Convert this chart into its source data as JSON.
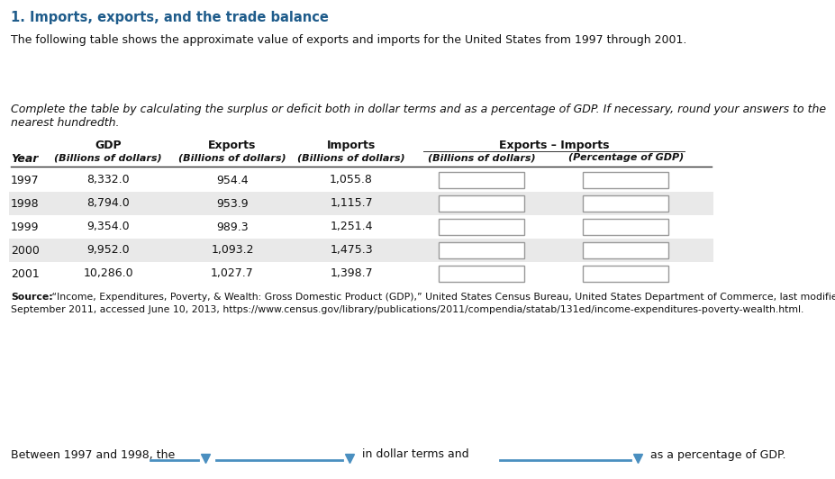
{
  "title": "1. Imports, exports, and the trade balance",
  "title_color": "#1f5c8b",
  "intro_text": "The following table shows the approximate value of exports and imports for the United States from 1997 through 2001.",
  "italic_line1": "Complete the table by calculating the surplus or deficit both in dollar terms and as a percentage of GDP. If necessary, round your answers to the",
  "italic_line2": "nearest hundredth.",
  "years": [
    "1997",
    "1998",
    "1999",
    "2000",
    "2001"
  ],
  "gdp": [
    "8,332.0",
    "8,794.0",
    "9,354.0",
    "9,952.0",
    "10,286.0"
  ],
  "exports": [
    "954.4",
    "953.9",
    "989.3",
    "1,093.2",
    "1,027.7"
  ],
  "imports": [
    "1,055.8",
    "1,115.7",
    "1,251.4",
    "1,475.3",
    "1,398.7"
  ],
  "source_bold": "Source:",
  "source_rest1": " “Income, Expenditures, Poverty, & Wealth: Gross Domestic Product (GDP),” United States Census Bureau, United States Department of Commerce, last modified",
  "source_line2": "September 2011, accessed June 10, 2013, https://www.census.gov/library/publications/2011/compendia/statab/131ed/income-expenditures-poverty-wealth.html.",
  "bottom_before": "Between 1997 and 1998, the",
  "bottom_mid": "in dollar terms and",
  "bottom_end": "as a percentage of GDP.",
  "bg_color": "#ffffff",
  "row_alt_color": "#e9e9e9",
  "text_color": "#111111",
  "dropdown_color": "#4a8fc0",
  "input_border": "#999999",
  "header_line_color": "#333333"
}
